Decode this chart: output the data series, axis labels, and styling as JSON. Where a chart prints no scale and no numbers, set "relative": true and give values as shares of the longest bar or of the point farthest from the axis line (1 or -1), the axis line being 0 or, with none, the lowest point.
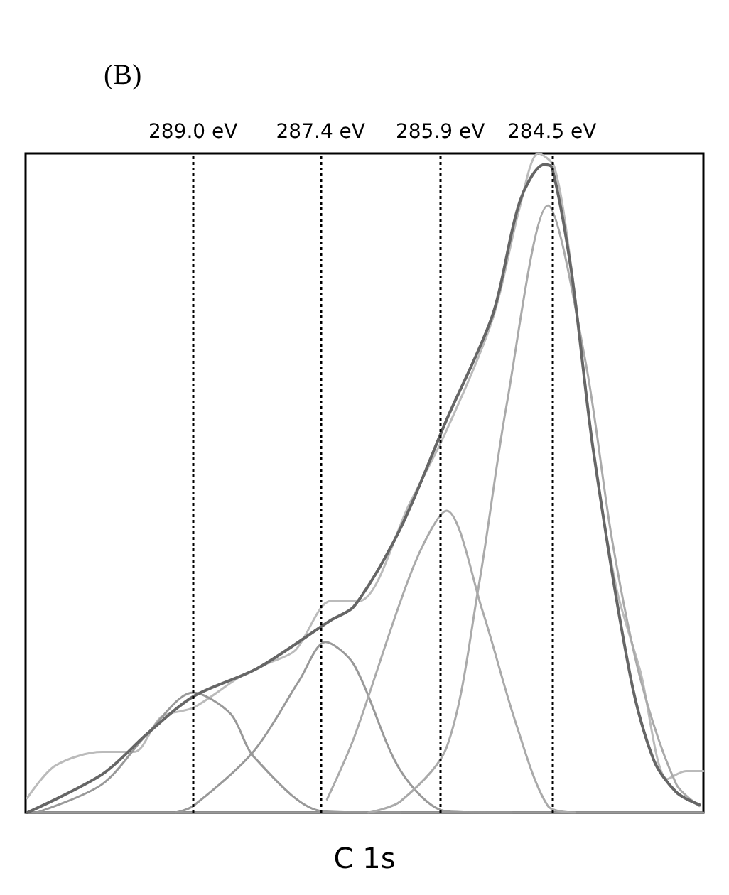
{
  "chart_data": {
    "type": "line",
    "title": "(B)",
    "xlabel": "C 1s",
    "relative": true,
    "xlim": [
      291.1,
      282.6
    ],
    "xticks": [
      {
        "value": 289.0,
        "label": "289.0 eV"
      },
      {
        "value": 287.4,
        "label": "287.4 eV"
      },
      {
        "value": 285.9,
        "label": "285.9 eV"
      },
      {
        "value": 284.5,
        "label": "284.5 eV"
      }
    ],
    "tick_labels": "x",
    "grid": false,
    "marker": "none",
    "line_style": "solid",
    "ref_lines": [
      {
        "axis": "x",
        "value": 289.0,
        "color": "#000000",
        "line_style": "dotted"
      },
      {
        "axis": "x",
        "value": 287.4,
        "color": "#000000",
        "line_style": "dotted"
      },
      {
        "axis": "x",
        "value": 285.9,
        "color": "#000000",
        "line_style": "dotted"
      },
      {
        "axis": "x",
        "value": 284.5,
        "color": "#000000",
        "line_style": "dotted"
      }
    ],
    "series": [
      {
        "color": "#bbbbbb",
        "x": [
          291.08,
          290.73,
          290.14,
          289.74,
          289.4,
          289.0,
          288.41,
          288.07,
          287.72,
          287.27,
          286.92,
          286.28,
          285.82,
          285.24,
          284.9,
          284.67,
          284.47,
          284.26,
          283.98,
          283.69,
          283.39,
          283.05,
          282.82,
          282.6
        ],
        "values": [
          0.022,
          0.071,
          0.092,
          0.092,
          0.145,
          0.159,
          0.206,
          0.226,
          0.246,
          0.321,
          0.321,
          0.47,
          0.58,
          0.75,
          0.92,
          1,
          0.98,
          0.83,
          0.55,
          0.34,
          0.214,
          0.051,
          0.063,
          0.063
        ]
      },
      {
        "color": "#999999",
        "x": [
          291.08,
          282.6
        ],
        "values": [
          0,
          0
        ]
      },
      {
        "color": "#999999",
        "x": [
          290.96,
          290.14,
          289.57,
          289.0,
          288.53,
          288.24,
          287.37,
          286.4
        ],
        "values": [
          0,
          0.043,
          0.12,
          0.182,
          0.15,
          0.085,
          0.002,
          0
        ]
      },
      {
        "color": "#999999",
        "x": [
          289.22,
          289.0,
          288.24,
          287.67,
          287.34,
          286.98,
          286.4,
          285.82,
          285.0
        ],
        "values": [
          0,
          0.01,
          0.093,
          0.2,
          0.259,
          0.224,
          0.064,
          0.002,
          0
        ]
      },
      {
        "color": "#aaaaaa",
        "x": [
          287.32,
          286.98,
          286.23,
          285.82,
          285.37,
          284.95,
          284.55,
          284.21
        ],
        "values": [
          0.02,
          0.114,
          0.375,
          0.458,
          0.306,
          0.135,
          0.01,
          0
        ]
      },
      {
        "color": "#aaaaaa",
        "x": [
          286.8,
          286.4,
          285.82,
          285.42,
          285.07,
          284.55,
          284.08,
          283.74,
          283.39,
          282.94,
          282.65
        ],
        "values": [
          0,
          0.017,
          0.099,
          0.342,
          0.617,
          0.921,
          0.685,
          0.41,
          0.203,
          0.043,
          0.01
        ]
      },
      {
        "color": "#666666",
        "x": [
          291.08,
          290.14,
          289.57,
          289.0,
          288.19,
          287.27,
          286.98,
          286.4,
          285.82,
          285.24,
          284.9,
          284.6,
          284.5,
          284.26,
          283.98,
          283.51,
          283.22,
          282.94,
          282.65
        ],
        "values": [
          0,
          0.058,
          0.12,
          0.176,
          0.219,
          0.292,
          0.313,
          0.431,
          0.596,
          0.756,
          0.928,
          0.983,
          0.979,
          0.824,
          0.549,
          0.203,
          0.079,
          0.031,
          0.012
        ]
      }
    ]
  }
}
